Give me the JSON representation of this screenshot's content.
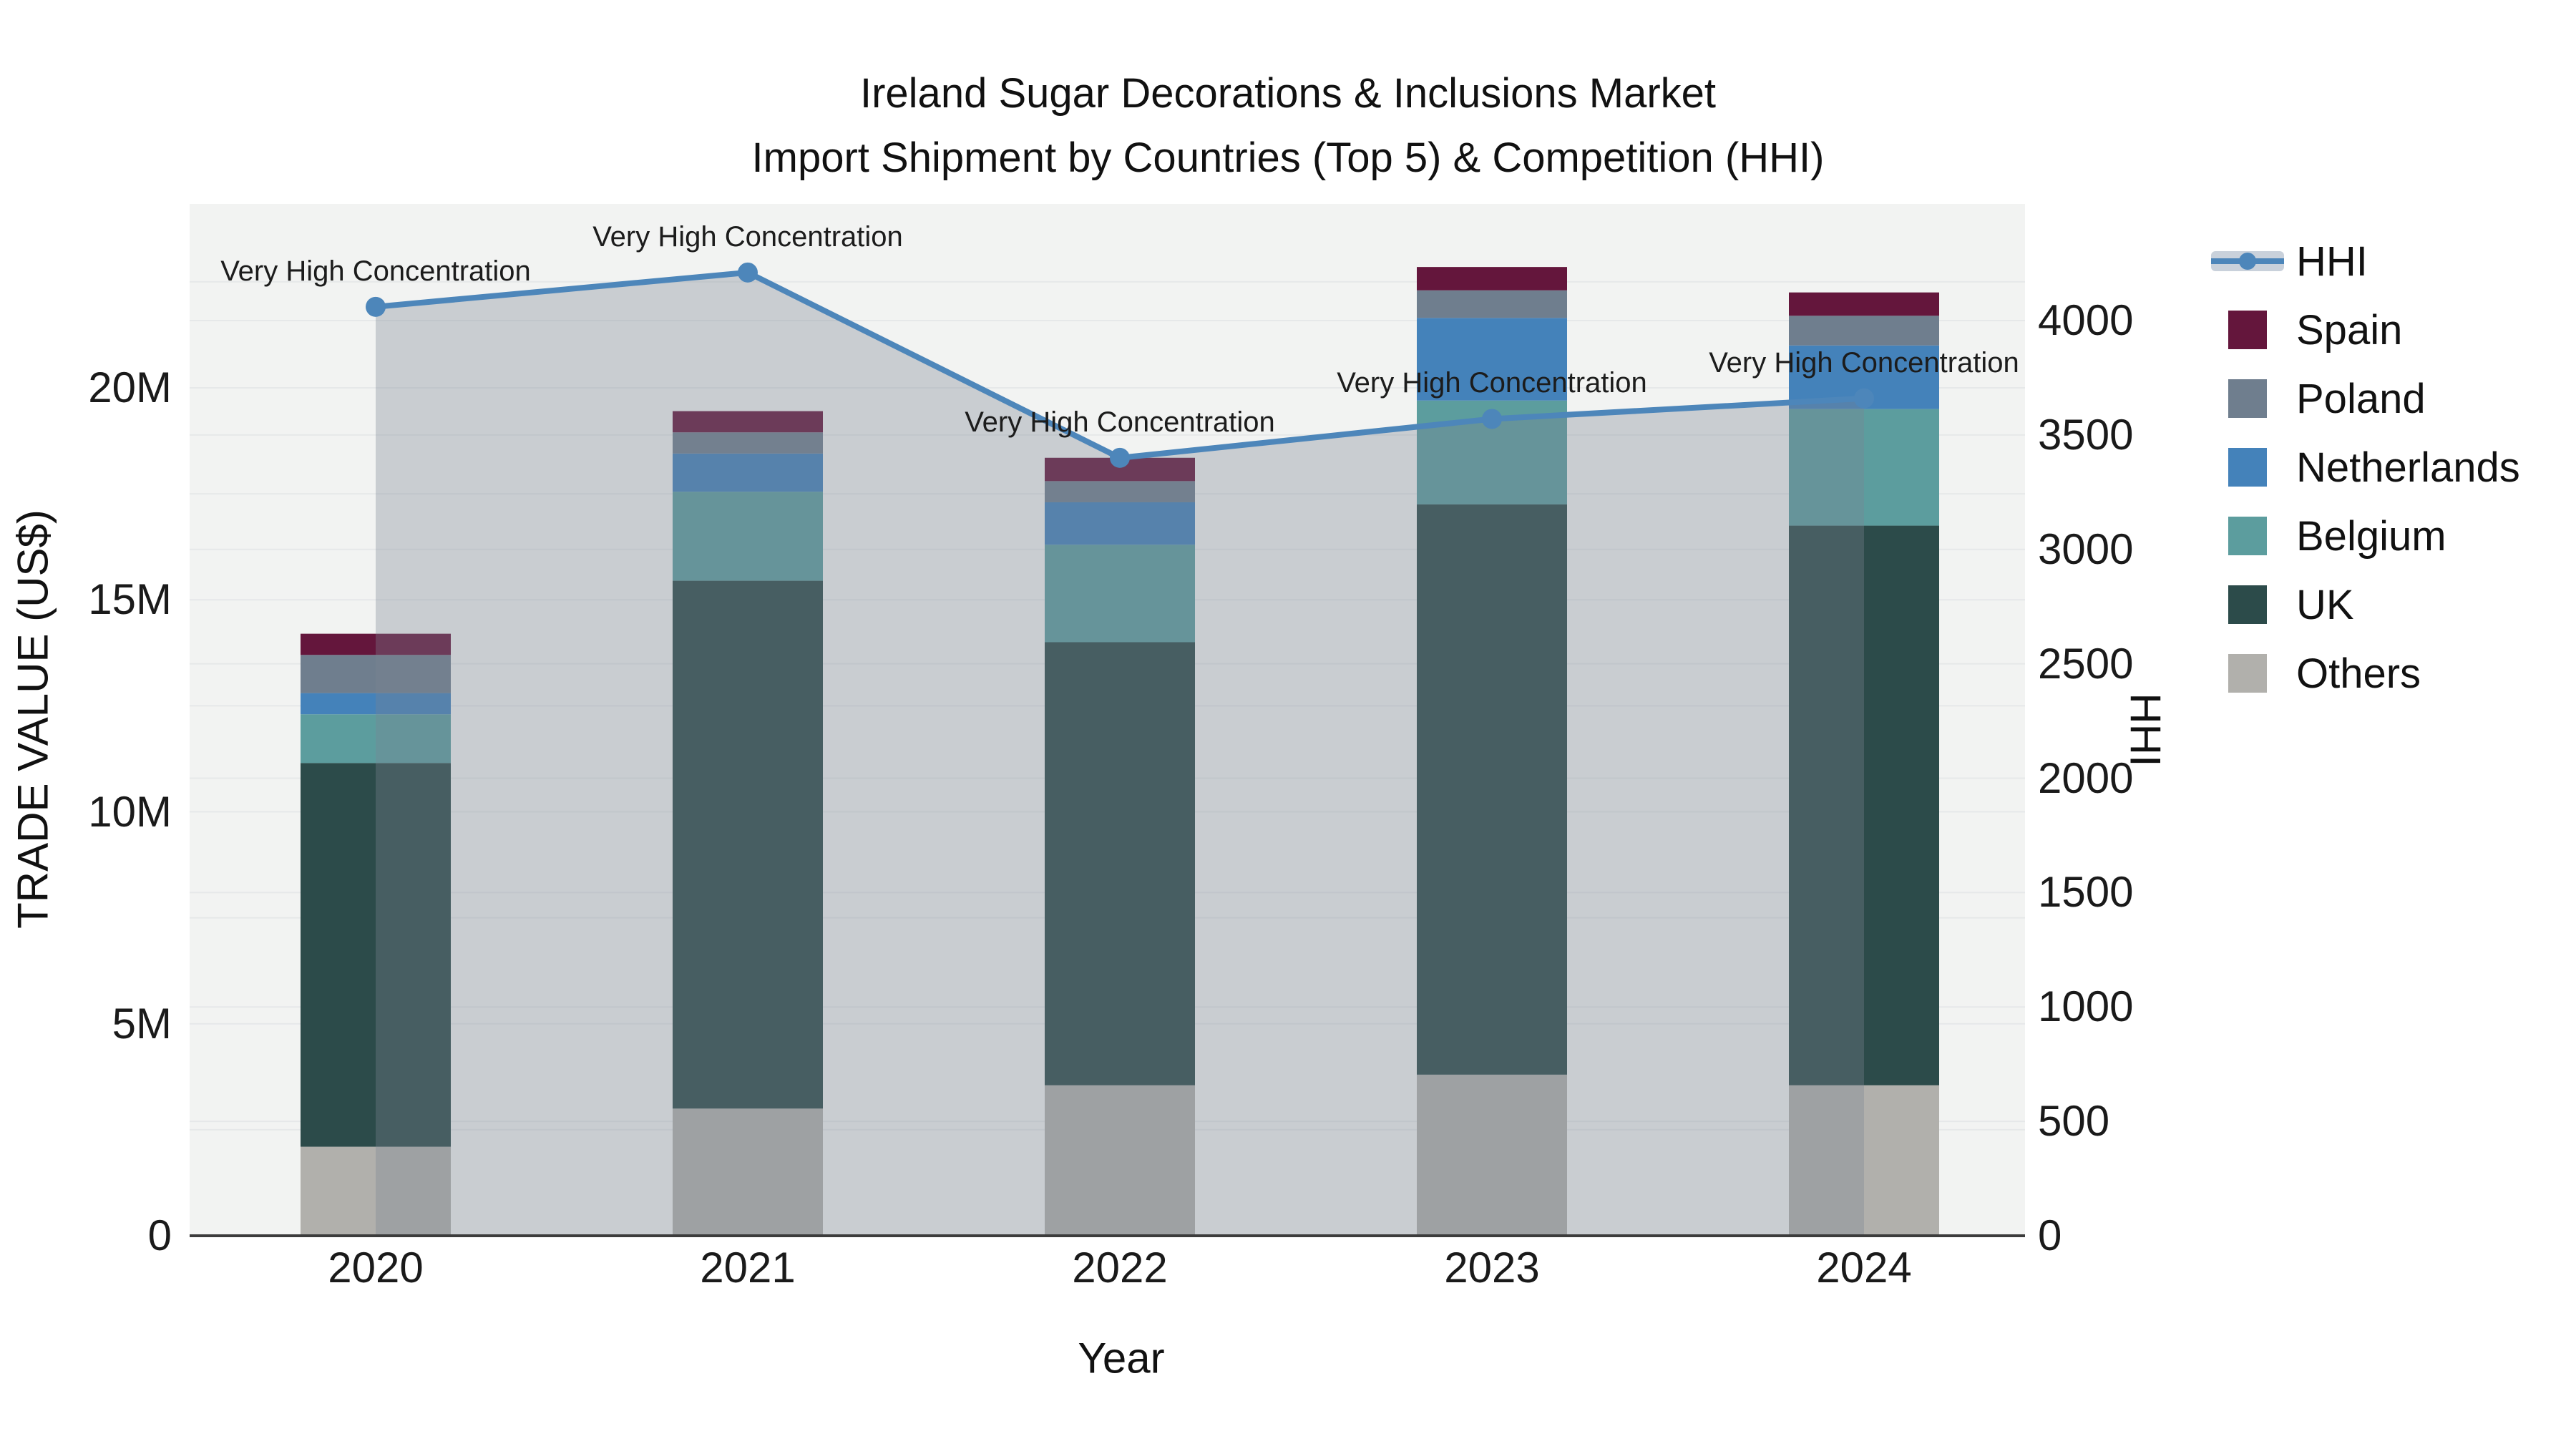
{
  "title": {
    "line1": "Ireland Sugar Decorations & Inclusions Market",
    "line2": "Import Shipment by Countries (Top 5) & Competition (HHI)"
  },
  "chart_data": {
    "type": "combo-stacked-bar-line",
    "categories": [
      "2020",
      "2021",
      "2022",
      "2023",
      "2024"
    ],
    "series": [
      {
        "name": "Others",
        "color": "#b1b0ac",
        "values": [
          2.1,
          3.0,
          3.55,
          3.8,
          3.55
        ]
      },
      {
        "name": "UK",
        "color": "#2c4b4a",
        "values": [
          9.05,
          12.45,
          10.45,
          13.45,
          13.2
        ]
      },
      {
        "name": "Belgium",
        "color": "#5c9d9e",
        "values": [
          1.15,
          2.1,
          2.3,
          2.45,
          2.75
        ]
      },
      {
        "name": "Netherlands",
        "color": "#4482ba",
        "values": [
          0.5,
          0.9,
          1.0,
          1.95,
          1.5
        ]
      },
      {
        "name": "Poland",
        "color": "#6f7e8e",
        "values": [
          0.9,
          0.5,
          0.5,
          0.65,
          0.7
        ]
      },
      {
        "name": "Spain",
        "color": "#64163c",
        "values": [
          0.5,
          0.5,
          0.55,
          0.55,
          0.55
        ]
      }
    ],
    "bar_totals_musd": [
      14.2,
      19.45,
      18.35,
      22.85,
      22.25
    ],
    "line_series": {
      "name": "HHI",
      "values": [
        4060,
        4210,
        3400,
        3570,
        3660
      ],
      "color": "#4d86ba",
      "area_fill": "rgba(123,131,148,0.34)",
      "marker": "circle"
    },
    "annotations": [
      {
        "category": "2020",
        "label": "Very High Concentration"
      },
      {
        "category": "2021",
        "label": "Very High Concentration"
      },
      {
        "category": "2022",
        "label": "Very High Concentration"
      },
      {
        "category": "2023",
        "label": "Very High Concentration"
      },
      {
        "category": "2024",
        "label": "Very High Concentration"
      }
    ],
    "axes": {
      "x": {
        "label": "Year",
        "ticks": [
          "2020",
          "2021",
          "2022",
          "2023",
          "2024"
        ]
      },
      "left": {
        "label": "TRADE VALUE (US$)",
        "ticks": [
          {
            "value": 0,
            "label": "0"
          },
          {
            "value": 5,
            "label": "5M"
          },
          {
            "value": 10,
            "label": "10M"
          },
          {
            "value": 15,
            "label": "15M"
          },
          {
            "value": 20,
            "label": "20M"
          }
        ],
        "units": "millions",
        "range": [
          0,
          24.3
        ],
        "grid": true
      },
      "right": {
        "label": "HHI",
        "ticks": [
          {
            "value": 0,
            "label": "0"
          },
          {
            "value": 500,
            "label": "500"
          },
          {
            "value": 1000,
            "label": "1000"
          },
          {
            "value": 1500,
            "label": "1500"
          },
          {
            "value": 2000,
            "label": "2000"
          },
          {
            "value": 2500,
            "label": "2500"
          },
          {
            "value": 3000,
            "label": "3000"
          },
          {
            "value": 3500,
            "label": "3500"
          },
          {
            "value": 4000,
            "label": "4000"
          }
        ],
        "range": [
          0,
          4510
        ],
        "grid": true
      }
    },
    "colors": {
      "plot_bg": "#f2f3f2",
      "grid": "#e6e8e9",
      "axis_line": "#3c3c3c",
      "text": "#1a1a1a"
    },
    "legend_position": "right"
  },
  "legend": {
    "items": [
      {
        "label": "HHI",
        "type": "line",
        "color": "#4d86ba",
        "band": "#c9d1db"
      },
      {
        "label": "Spain",
        "type": "square",
        "color": "#64163c"
      },
      {
        "label": "Poland",
        "type": "square",
        "color": "#6f7e8e"
      },
      {
        "label": "Netherlands",
        "type": "square",
        "color": "#4482ba"
      },
      {
        "label": "Belgium",
        "type": "square",
        "color": "#5c9d9e"
      },
      {
        "label": "UK",
        "type": "square",
        "color": "#2c4b4a"
      },
      {
        "label": "Others",
        "type": "square",
        "color": "#b1b0ac"
      }
    ]
  }
}
